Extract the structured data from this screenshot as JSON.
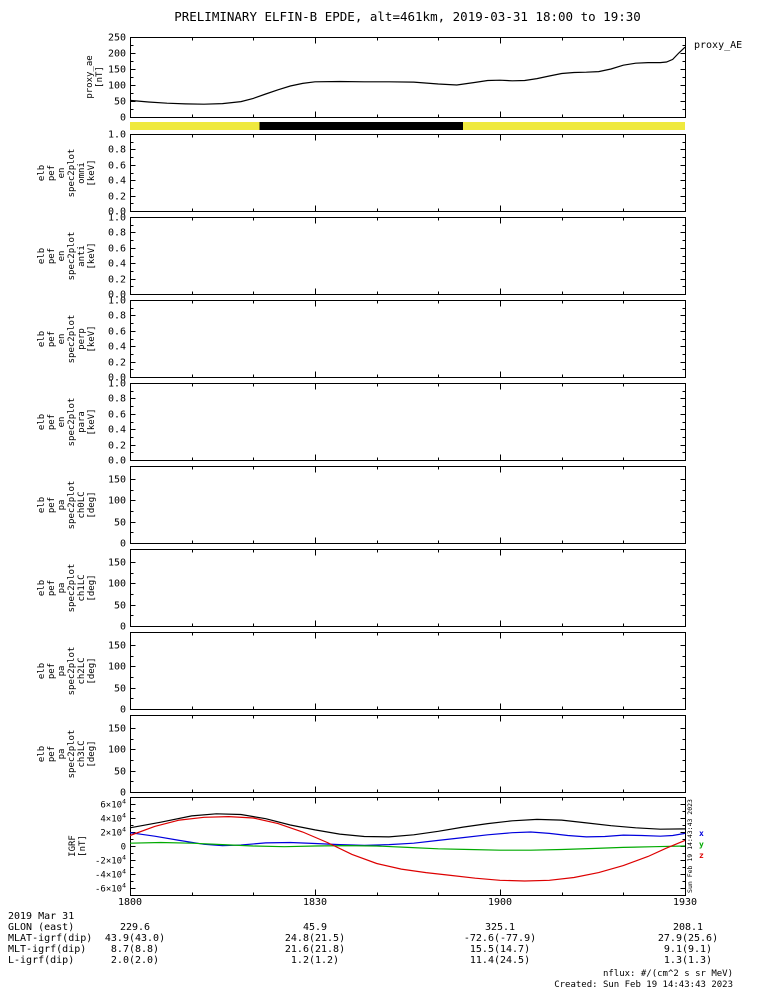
{
  "title": "PRELIMINARY ELFIN-B EPDE, alt=461km, 2019-03-31 18:00 to 19:30",
  "proxy_right_label": "proxy_AE",
  "side_timestamp": "Sun Feb 19 14:43:43 2023",
  "footer": {
    "nflux_units": "nflux: #/(cm^2 s sr MeV)",
    "created": "Created: Sun Feb 19 14:43:43 2023"
  },
  "x_axis": {
    "range_minutes": [
      0,
      90
    ],
    "tick_labels": [
      "1800",
      "1830",
      "1900",
      "1930"
    ],
    "tick_minutes": [
      0,
      30,
      60,
      90
    ],
    "minor_tick_step_minutes": 10
  },
  "ephemeris_table": {
    "date_label": "2019 Mar 31",
    "rows": [
      {
        "label": "GLON (east)",
        "values": [
          "229.6",
          "45.9",
          "325.1",
          "208.1"
        ]
      },
      {
        "label": "MLAT-igrf(dip)",
        "values": [
          "43.9(43.0)",
          "24.8(21.5)",
          "-72.6(-77.9)",
          "27.9(25.6)"
        ]
      },
      {
        "label": "MLT-igrf(dip)",
        "values": [
          "8.7(8.8)",
          "21.6(21.8)",
          "15.5(14.7)",
          "9.1(9.1)"
        ]
      },
      {
        "label": "L-igrf(dip)",
        "values": [
          "2.0(2.0)",
          "1.2(1.2)",
          "11.4(24.5)",
          "1.3(1.3)"
        ]
      }
    ]
  },
  "chart_data": [
    {
      "id": "proxy_ae",
      "type": "line",
      "ylabel_lines": [
        "proxy_ae",
        "[nT]"
      ],
      "ylim": [
        0,
        250
      ],
      "yticks": [
        0,
        50,
        100,
        150,
        200,
        250
      ],
      "ytick_labels": [
        "0",
        "50",
        "100",
        "150",
        "200",
        "250"
      ],
      "series": [
        {
          "name": "proxy_AE",
          "color": "#000000",
          "x": [
            0,
            3,
            6,
            9,
            12,
            15,
            18,
            20,
            22,
            24,
            26,
            28,
            30,
            34,
            38,
            42,
            46,
            50,
            53,
            56,
            58,
            60,
            62,
            64,
            66,
            68,
            70,
            72,
            74,
            76,
            78,
            80,
            82,
            84,
            86,
            87,
            88,
            89,
            90
          ],
          "y": [
            52,
            47,
            43,
            41,
            40,
            42,
            48,
            58,
            72,
            85,
            97,
            105,
            110,
            111,
            110,
            110,
            109,
            103,
            100,
            108,
            114,
            115,
            113,
            114,
            120,
            128,
            136,
            139,
            140,
            142,
            150,
            162,
            168,
            170,
            170,
            172,
            180,
            200,
            218
          ]
        }
      ]
    },
    {
      "id": "data_availability_bar",
      "type": "band",
      "segments": [
        {
          "start_min": 0,
          "end_min": 90,
          "color": "#efe93e"
        },
        {
          "start_min": 21,
          "end_min": 54,
          "color": "#000000"
        }
      ]
    },
    {
      "id": "elb_pef_en_spec2plot_omni",
      "type": "empty",
      "ylabel_lines": [
        "elb",
        "pef",
        "en",
        "spec2plot",
        "omni",
        "[keV]"
      ],
      "ylim": [
        0,
        1
      ],
      "yticks": [
        0,
        0.2,
        0.4,
        0.6,
        0.8,
        1
      ],
      "ytick_labels": [
        "0.0",
        "0.2",
        "0.4",
        "0.6",
        "0.8",
        "1.0"
      ]
    },
    {
      "id": "elb_pef_en_spec2plot_anti",
      "type": "empty",
      "ylabel_lines": [
        "elb",
        "pef",
        "en",
        "spec2plot",
        "anti",
        "[keV]"
      ],
      "ylim": [
        0,
        1
      ],
      "yticks": [
        0,
        0.2,
        0.4,
        0.6,
        0.8,
        1
      ],
      "ytick_labels": [
        "0.0",
        "0.2",
        "0.4",
        "0.6",
        "0.8",
        "1.0"
      ]
    },
    {
      "id": "elb_pef_en_spec2plot_perp",
      "type": "empty",
      "ylabel_lines": [
        "elb",
        "pef",
        "en",
        "spec2plot",
        "perp",
        "[keV]"
      ],
      "ylim": [
        0,
        1
      ],
      "yticks": [
        0,
        0.2,
        0.4,
        0.6,
        0.8,
        1
      ],
      "ytick_labels": [
        "0.0",
        "0.2",
        "0.4",
        "0.6",
        "0.8",
        "1.0"
      ]
    },
    {
      "id": "elb_pef_en_spec2plot_para",
      "type": "empty",
      "ylabel_lines": [
        "elb",
        "pef",
        "en",
        "spec2plot",
        "para",
        "[keV]"
      ],
      "ylim": [
        0,
        1
      ],
      "yticks": [
        0,
        0.2,
        0.4,
        0.6,
        0.8,
        1
      ],
      "ytick_labels": [
        "0.0",
        "0.2",
        "0.4",
        "0.6",
        "0.8",
        "1.0"
      ]
    },
    {
      "id": "elb_pef_pa_spec2plot_ch0LC",
      "type": "empty",
      "ylabel_lines": [
        "elb",
        "pef",
        "pa",
        "spec2plot",
        "ch0LC",
        "[deg]"
      ],
      "ylim": [
        0,
        180
      ],
      "yticks": [
        0,
        50,
        100,
        150
      ],
      "ytick_labels": [
        "0",
        "50",
        "100",
        "150"
      ]
    },
    {
      "id": "elb_pef_pa_spec2plot_ch1LC",
      "type": "empty",
      "ylabel_lines": [
        "elb",
        "pef",
        "pa",
        "spec2plot",
        "ch1LC",
        "[deg]"
      ],
      "ylim": [
        0,
        180
      ],
      "yticks": [
        0,
        50,
        100,
        150
      ],
      "ytick_labels": [
        "0",
        "50",
        "100",
        "150"
      ]
    },
    {
      "id": "elb_pef_pa_spec2plot_ch2LC",
      "type": "empty",
      "ylabel_lines": [
        "elb",
        "pef",
        "pa",
        "spec2plot",
        "ch2LC",
        "[deg]"
      ],
      "ylim": [
        0,
        180
      ],
      "yticks": [
        0,
        50,
        100,
        150
      ],
      "ytick_labels": [
        "0",
        "50",
        "100",
        "150"
      ]
    },
    {
      "id": "elb_pef_pa_spec2plot_ch3LC",
      "type": "empty",
      "ylabel_lines": [
        "elb",
        "pef",
        "pa",
        "spec2plot",
        "ch3LC",
        "[deg]"
      ],
      "ylim": [
        0,
        180
      ],
      "yticks": [
        0,
        50,
        100,
        150
      ],
      "ytick_labels": [
        "0",
        "50",
        "100",
        "150"
      ]
    },
    {
      "id": "igrf",
      "type": "line",
      "ylabel_lines": [
        "IGRF",
        "[nT]"
      ],
      "ylim": [
        -70000,
        70000
      ],
      "yticks": [
        -60000,
        -40000,
        -20000,
        0,
        20000,
        40000,
        60000
      ],
      "ytick_labels": [
        "-6×10^4",
        "-4×10^4",
        "-2×10^4",
        "0",
        "2×10^4",
        "4×10^4",
        "6×10^4"
      ],
      "legend": [
        {
          "label": "x",
          "color": "#0000dd"
        },
        {
          "label": "y",
          "color": "#00aa00"
        },
        {
          "label": "z",
          "color": "#dd0000"
        }
      ],
      "series": [
        {
          "name": "bt",
          "color": "#000000",
          "x": [
            0,
            5,
            10,
            14,
            18,
            22,
            26,
            30,
            34,
            38,
            42,
            46,
            50,
            54,
            58,
            62,
            66,
            70,
            74,
            78,
            82,
            86,
            90
          ],
          "y": [
            26000,
            34000,
            43000,
            46000,
            45000,
            39000,
            30000,
            23000,
            17000,
            13500,
            13000,
            16000,
            21000,
            27000,
            32000,
            36000,
            38000,
            37000,
            33000,
            29000,
            26000,
            24000,
            24500
          ]
        },
        {
          "name": "bx",
          "color": "#0000dd",
          "x": [
            0,
            4,
            8,
            12,
            15,
            18,
            22,
            26,
            30,
            34,
            38,
            42,
            46,
            50,
            54,
            58,
            62,
            65,
            68,
            71,
            74,
            77,
            80,
            83,
            86,
            88,
            90
          ],
          "y": [
            19000,
            14000,
            8000,
            2500,
            500,
            1500,
            4500,
            5000,
            3500,
            2000,
            1000,
            2000,
            4000,
            8000,
            12000,
            16000,
            19000,
            20000,
            18000,
            15000,
            13000,
            13500,
            15500,
            15000,
            14000,
            15000,
            18000
          ]
        },
        {
          "name": "by",
          "color": "#00aa00",
          "x": [
            0,
            5,
            10,
            15,
            20,
            25,
            30,
            35,
            40,
            45,
            50,
            55,
            60,
            65,
            70,
            75,
            80,
            85,
            90
          ],
          "y": [
            4000,
            5000,
            4000,
            2000,
            0,
            -1000,
            0,
            500,
            0,
            -2000,
            -4000,
            -5000,
            -6000,
            -6000,
            -5000,
            -3500,
            -2000,
            -1000,
            0
          ]
        },
        {
          "name": "bz",
          "color": "#dd0000",
          "x": [
            0,
            4,
            8,
            12,
            16,
            20,
            24,
            28,
            32,
            36,
            40,
            44,
            48,
            52,
            56,
            60,
            64,
            68,
            72,
            76,
            80,
            84,
            87,
            90
          ],
          "y": [
            15000,
            28000,
            37000,
            41000,
            42000,
            40000,
            32000,
            20000,
            5000,
            -12000,
            -25000,
            -33000,
            -38000,
            -42000,
            -46000,
            -49000,
            -50000,
            -49000,
            -45000,
            -38000,
            -28000,
            -15000,
            -3000,
            8000
          ]
        }
      ]
    }
  ]
}
